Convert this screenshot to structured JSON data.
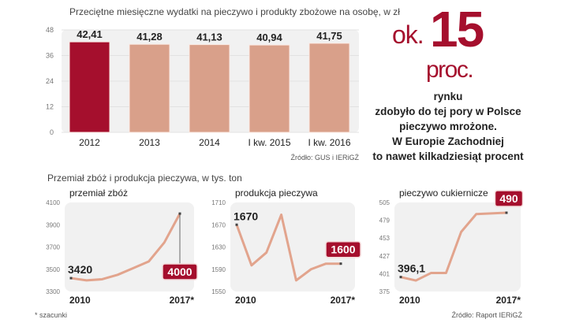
{
  "colors": {
    "accent": "#a50f2d",
    "bar": "#d9a08a",
    "line": "#e2a48d",
    "panel": "#f1f1f1"
  },
  "chart_data": [
    {
      "type": "bar",
      "title": "Przeciętne miesięczne wydatki na pieczywo i produkty zbożowe na osobę, w zł",
      "categories": [
        "2012",
        "2013",
        "2014",
        "I kw. 2015",
        "I kw. 2016"
      ],
      "values": [
        42.41,
        41.28,
        41.13,
        40.94,
        41.75
      ],
      "value_labels": [
        "42,41",
        "41,28",
        "41,13",
        "40,94",
        "41,75"
      ],
      "highlight_index": 0,
      "yticks": [
        "0",
        "12",
        "24",
        "36",
        "48"
      ],
      "ylim": [
        0,
        48
      ],
      "source": "Źródło: GUS i IERiGŻ"
    },
    {
      "type": "line",
      "title": "przemiał zbóż",
      "x": [
        2010,
        2011,
        2012,
        2013,
        2014,
        2015,
        2016,
        2017
      ],
      "values": [
        3420,
        3400,
        3410,
        3450,
        3510,
        3570,
        3740,
        4000
      ],
      "ylim": [
        3300,
        4100
      ],
      "yticks": [
        "3300",
        "3500",
        "3700",
        "3900",
        "4100"
      ],
      "xtick_labels": [
        "2010",
        "2017*"
      ],
      "first_label": "3420",
      "last_label": "4000"
    },
    {
      "type": "line",
      "title": "produkcja pieczywa",
      "x": [
        2010,
        2011,
        2012,
        2013,
        2014,
        2015,
        2016,
        2017
      ],
      "values": [
        1670,
        1597,
        1620,
        1688,
        1570,
        1590,
        1600,
        1600
      ],
      "ylim": [
        1550,
        1710
      ],
      "yticks": [
        "1550",
        "1590",
        "1630",
        "1670",
        "1710"
      ],
      "xtick_labels": [
        "2010",
        "2017*"
      ],
      "first_label": "1670",
      "last_label": "1600"
    },
    {
      "type": "line",
      "title": "pieczywo cukiernicze",
      "x": [
        2010,
        2011,
        2012,
        2013,
        2014,
        2015,
        2016,
        2017
      ],
      "values": [
        396.1,
        391,
        402,
        402,
        462,
        488,
        489,
        490
      ],
      "ylim": [
        375,
        505
      ],
      "yticks": [
        "375",
        "401",
        "427",
        "453",
        "479",
        "505"
      ],
      "xtick_labels": [
        "2010",
        "2017*"
      ],
      "first_label": "396,1",
      "last_label": "490"
    }
  ],
  "callout": {
    "prefix": "ok.",
    "number": "15",
    "unit": "proc.",
    "lines": [
      "rynku",
      "zdobyło do tej pory w Polsce",
      "pieczywo mrożone.",
      "W Europie Zachodniej",
      "to nawet kilkadziesiąt procent"
    ]
  },
  "section2_title": "Przemiał zbóż i produkcja pieczywa, w tys. ton",
  "footnote": "* szacunki",
  "source2": "Źródło: Raport IERiGŻ"
}
